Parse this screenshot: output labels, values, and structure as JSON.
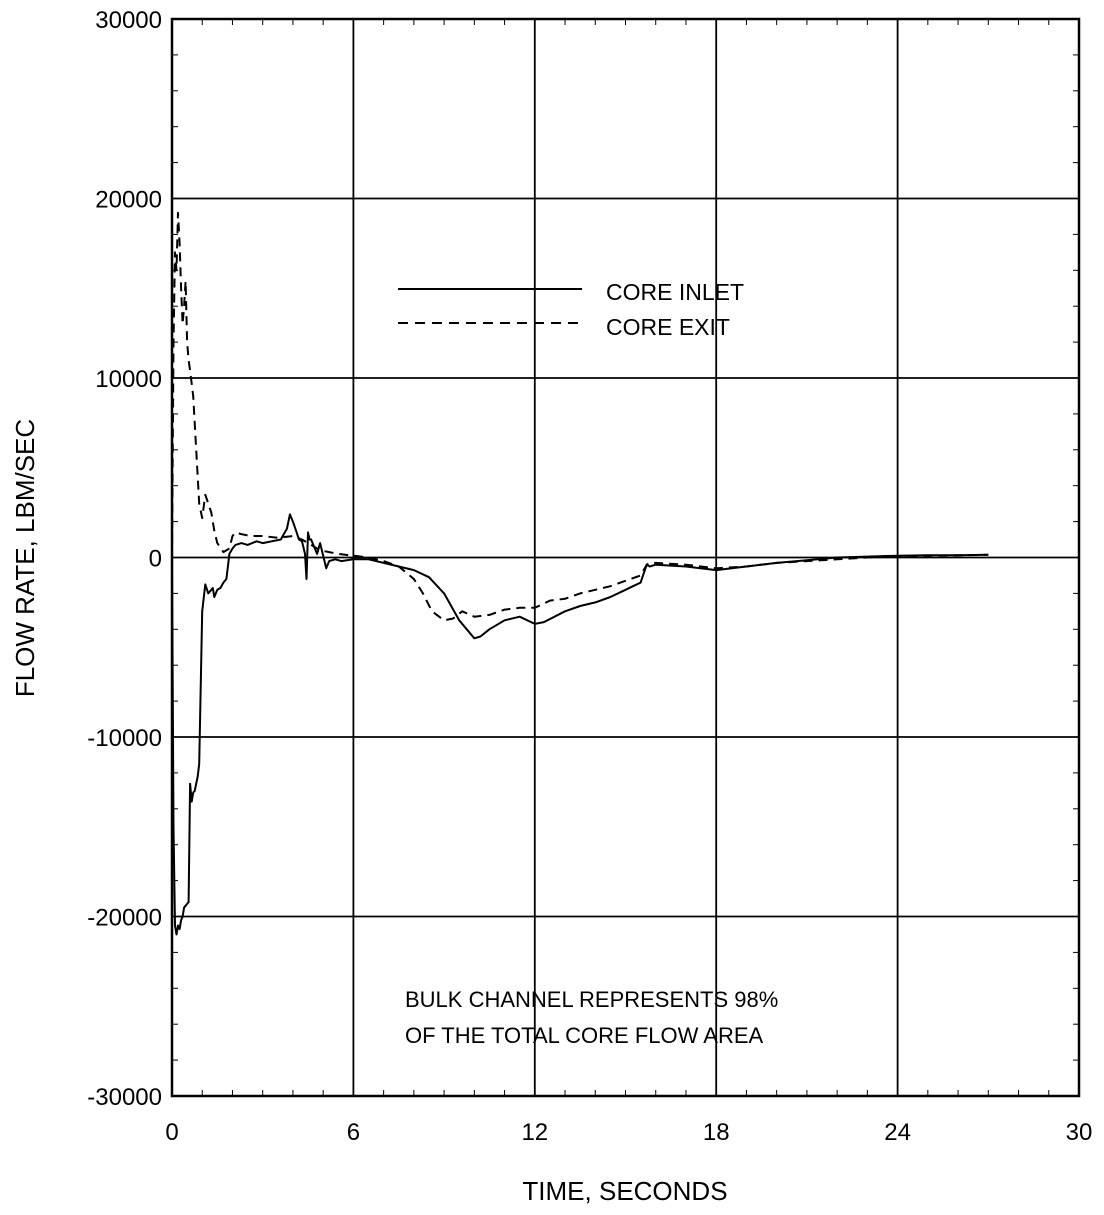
{
  "chart_data": {
    "type": "line",
    "xlabel": "TIME, SECONDS",
    "ylabel": "FLOW RATE, LBM/SEC",
    "xlim": [
      0,
      30
    ],
    "ylim": [
      -30000,
      30000
    ],
    "xticks": [
      0,
      6,
      12,
      18,
      24,
      30
    ],
    "yticks": [
      30000,
      20000,
      10000,
      0,
      -10000,
      -20000,
      -30000
    ],
    "grid": true,
    "legend_position": "upper-center",
    "annotation": [
      "BULK CHANNEL REPRESENTS 98%",
      "OF THE TOTAL CORE FLOW AREA"
    ],
    "series": [
      {
        "name": "CORE INLET",
        "style": "solid",
        "color": "#000000",
        "x": [
          0,
          0.05,
          0.1,
          0.15,
          0.2,
          0.25,
          0.3,
          0.35,
          0.4,
          0.45,
          0.5,
          0.55,
          0.6,
          0.65,
          0.7,
          0.75,
          0.8,
          0.85,
          0.9,
          1.0,
          1.1,
          1.2,
          1.3,
          1.35,
          1.4,
          1.5,
          1.6,
          1.7,
          1.8,
          1.9,
          2.0,
          2.1,
          2.3,
          2.5,
          2.8,
          3.0,
          3.3,
          3.6,
          3.8,
          3.9,
          4.0,
          4.1,
          4.2,
          4.3,
          4.4,
          4.45,
          4.5,
          4.55,
          4.6,
          4.7,
          4.8,
          4.9,
          5.0,
          5.1,
          5.2,
          5.4,
          5.6,
          6.0,
          6.5,
          7.0,
          7.5,
          8.0,
          8.5,
          9.0,
          9.5,
          10.0,
          10.2,
          10.5,
          11.0,
          11.5,
          12.0,
          12.3,
          13.0,
          13.5,
          14.0,
          14.5,
          15.0,
          15.5,
          15.7,
          15.8,
          16.0,
          17.0,
          18.0,
          19.0,
          20.0,
          21.0,
          22.0,
          23.0,
          24.0,
          25.0,
          26.0,
          27.0
        ],
        "y": [
          0,
          -15000,
          -20500,
          -21000,
          -20500,
          -20700,
          -20200,
          -20000,
          -19500,
          -19400,
          -19300,
          -19200,
          -12600,
          -13600,
          -13100,
          -13000,
          -12600,
          -12200,
          -11500,
          -3000,
          -1500,
          -2000,
          -1800,
          -1700,
          -2200,
          -1800,
          -1700,
          -1400,
          -1200,
          200,
          500,
          700,
          800,
          700,
          900,
          800,
          900,
          1000,
          1600,
          2400,
          2000,
          1500,
          1000,
          900,
          200,
          -1200,
          1400,
          1000,
          1000,
          600,
          200,
          800,
          100,
          -600,
          -200,
          -100,
          -200,
          -100,
          -100,
          -300,
          -500,
          -700,
          -1100,
          -2000,
          -3500,
          -4500,
          -4400,
          -4000,
          -3500,
          -3300,
          -3700,
          -3600,
          -3000,
          -2700,
          -2500,
          -2200,
          -1800,
          -1400,
          -400,
          -500,
          -400,
          -500,
          -700,
          -500,
          -300,
          -150,
          0,
          50,
          100,
          120,
          130,
          150
        ]
      },
      {
        "name": "CORE EXIT",
        "style": "dashed",
        "color": "#000000",
        "x": [
          0,
          0.05,
          0.1,
          0.15,
          0.2,
          0.25,
          0.3,
          0.35,
          0.4,
          0.45,
          0.5,
          0.55,
          0.6,
          0.7,
          0.8,
          0.9,
          1.0,
          1.1,
          1.2,
          1.3,
          1.4,
          1.5,
          1.7,
          1.9,
          2.0,
          2.1,
          2.3,
          2.6,
          3.0,
          3.5,
          4.0,
          4.3,
          4.6,
          4.9,
          5.2,
          5.5,
          6.0,
          6.5,
          7.0,
          7.5,
          8.0,
          8.3,
          8.6,
          9.0,
          9.3,
          9.6,
          10.0,
          10.5,
          11.0,
          11.5,
          12.0,
          12.5,
          13.0,
          13.5,
          14.0,
          14.5,
          15.0,
          15.5,
          15.7,
          15.8,
          16.0,
          17.0,
          18.0,
          19.0,
          20.0,
          21.0,
          22.0,
          23.0,
          24.0,
          25.0,
          26.0,
          27.0
        ],
        "y": [
          0,
          12000,
          17000,
          16000,
          19200,
          17500,
          15000,
          13000,
          14000,
          15400,
          12000,
          11000,
          10400,
          9000,
          6000,
          3000,
          2200,
          3500,
          3000,
          2500,
          1500,
          800,
          300,
          500,
          1200,
          1400,
          1300,
          1200,
          1200,
          1100,
          1200,
          1000,
          700,
          400,
          300,
          200,
          100,
          0,
          -200,
          -500,
          -1200,
          -2000,
          -3000,
          -3500,
          -3400,
          -3000,
          -3300,
          -3200,
          -2900,
          -2800,
          -2800,
          -2400,
          -2300,
          -2000,
          -1800,
          -1600,
          -1300,
          -1000,
          -400,
          -300,
          -300,
          -400,
          -600,
          -500,
          -300,
          -200,
          -100,
          0,
          50,
          100,
          120,
          150
        ]
      }
    ]
  }
}
